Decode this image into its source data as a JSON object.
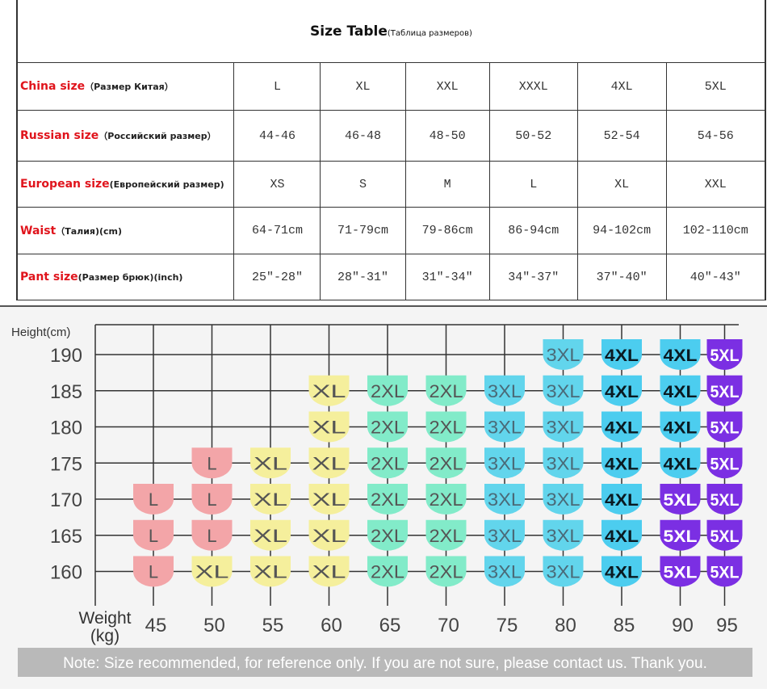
{
  "table": {
    "title": "Size Table",
    "subtitle": "(Таблица размеров)",
    "rows": [
      {
        "label_en": "China size",
        "label_ru": "（Размер Китая）",
        "values": [
          "L",
          "XL",
          "XXL",
          "XXXL",
          "4XL",
          "5XL"
        ]
      },
      {
        "label_en": "Russian size",
        "label_ru": "（Российский размер）",
        "values": [
          "44-46",
          "46-48",
          "48-50",
          "50-52",
          "52-54",
          "54-56"
        ]
      },
      {
        "label_en": "European size",
        "label_ru": "(Европейский размер)",
        "values": [
          "XS",
          "S",
          "M",
          "L",
          "XL",
          "XXL"
        ]
      },
      {
        "label_en": "Waist",
        "label_ru": "（Талия)(cm)",
        "values": [
          "64-71cm",
          "71-79cm",
          "79-86cm",
          "86-94cm",
          "94-102cm",
          "102-110cm"
        ]
      },
      {
        "label_en": "Pant size",
        "label_ru": "(Размер брюк)(inch)",
        "values": [
          "25″-28″",
          "28″-31″",
          "31″-34″",
          "34″-37″",
          "37″-40″",
          "40″-43″"
        ]
      }
    ]
  },
  "chart_data": {
    "type": "heatmap",
    "ylabel": "Height(cm)",
    "xlabel": "Weight\n(kg)",
    "xlabel_lines": [
      "Weight",
      "(kg)"
    ],
    "x": [
      45,
      50,
      55,
      60,
      65,
      70,
      75,
      80,
      85,
      90,
      95
    ],
    "y": [
      190,
      185,
      180,
      175,
      170,
      165,
      160
    ],
    "grid": true,
    "cells": [
      [
        "",
        "",
        "",
        "",
        "",
        "",
        "",
        "3XL",
        "4XL",
        "4XL",
        "5XL"
      ],
      [
        "",
        "",
        "",
        "XL",
        "2XL",
        "2XL",
        "3XL",
        "3XL",
        "4XL",
        "4XL",
        "5XL"
      ],
      [
        "",
        "",
        "",
        "XL",
        "2XL",
        "2XL",
        "3XL",
        "3XL",
        "4XL",
        "4XL",
        "5XL"
      ],
      [
        "",
        "L",
        "XL",
        "XL",
        "2XL",
        "2XL",
        "3XL",
        "3XL",
        "4XL",
        "4XL",
        "5XL"
      ],
      [
        "L",
        "L",
        "XL",
        "XL",
        "2XL",
        "2XL",
        "3XL",
        "3XL",
        "4XL",
        "5XL",
        "5XL"
      ],
      [
        "L",
        "L",
        "XL",
        "XL",
        "2XL",
        "2XL",
        "3XL",
        "3XL",
        "4XL",
        "5XL",
        "5XL"
      ],
      [
        "L",
        "XL",
        "XL",
        "XL",
        "2XL",
        "2XL",
        "3XL",
        "3XL",
        "4XL",
        "5XL",
        "5XL"
      ]
    ],
    "colors": {
      "L": "#f3a5a8",
      "XL": "#f5ef9c",
      "2XL": "#82ebc9",
      "3XL": "#62d5ec",
      "4XL": "#4ccdef",
      "5XL": "#7b2fe3"
    },
    "text_colors": {
      "L": "#555",
      "XL": "#555",
      "2XL": "#555",
      "3XL": "#4a6a78",
      "4XL": "#0a1a22",
      "5XL": "#ffffff"
    },
    "note": "Note: Size recommended, for reference only. If you are not sure, please contact us. Thank you."
  }
}
